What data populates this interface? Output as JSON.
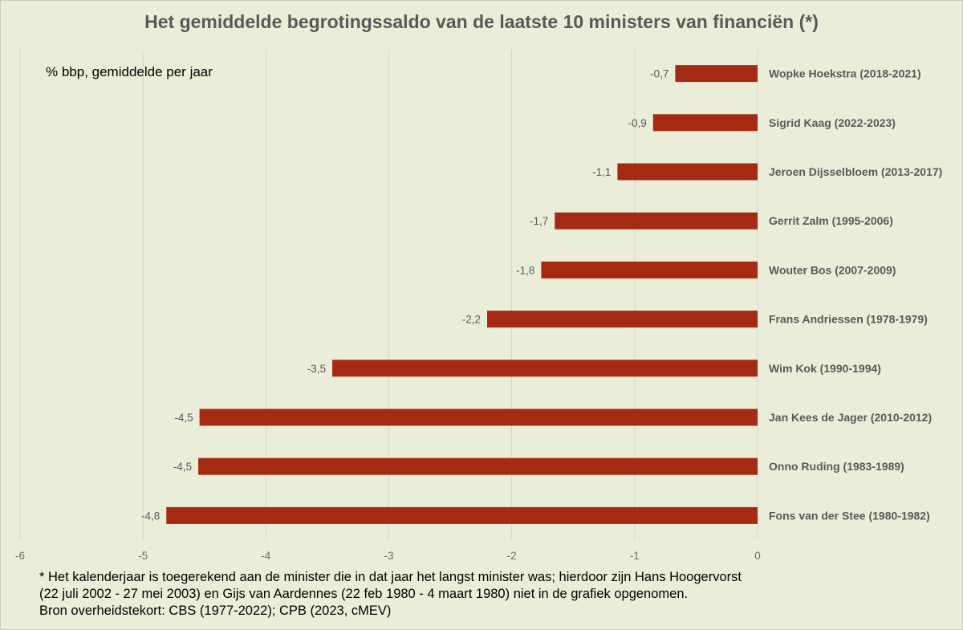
{
  "chart_data": {
    "type": "bar",
    "orientation": "horizontal",
    "title": "Het gemiddelde begrotingssaldo van de laatste 10 ministers van financiën (*)",
    "unit_label": "% bbp, gemiddelde per jaar",
    "categories": [
      "Wopke Hoekstra (2018-2021)",
      "Sigrid Kaag (2022-2023)",
      "Jeroen Dijsselbloem (2013-2017)",
      "Gerrit Zalm (1995-2006)",
      "Wouter Bos (2007-2009)",
      "Frans Andriessen (1978-1979)",
      "Wim Kok (1990-1994)",
      "Jan Kees de Jager (2010-2012)",
      "Onno Ruding (1983-1989)",
      "Fons van der Stee (1980-1982)"
    ],
    "values": [
      -0.67,
      -0.85,
      -1.14,
      -1.65,
      -1.76,
      -2.2,
      -3.46,
      -4.54,
      -4.55,
      -4.81
    ],
    "value_labels": [
      "-0,7",
      "-0,9",
      "-1,1",
      "-1,7",
      "-1,8",
      "-2,2",
      "-3,5",
      "-4,5",
      "-4,5",
      "-4,8"
    ],
    "xlim": [
      -6,
      0
    ],
    "xticks": [
      -6,
      -5,
      -4,
      -3,
      -2,
      -1,
      0
    ],
    "xtick_labels": [
      "-6",
      "-5",
      "-4",
      "-3",
      "-2",
      "-1",
      "0"
    ],
    "grid": true,
    "bar_color": "#a52a14",
    "background_color": "#eaeed9"
  },
  "footnote": {
    "lines": [
      "* Het kalenderjaar is toegerekend aan de minister die in dat jaar het langst minister was; hierdoor zijn Hans Hoogervorst",
      "(22 juli 2002 - 27 mei 2003) en Gijs van Aardennes (22 feb 1980 - 4 maart 1980) niet in de grafiek opgenomen.",
      "Bron overheidstekort: CBS (1977-2022); CPB (2023, cMEV)"
    ]
  }
}
